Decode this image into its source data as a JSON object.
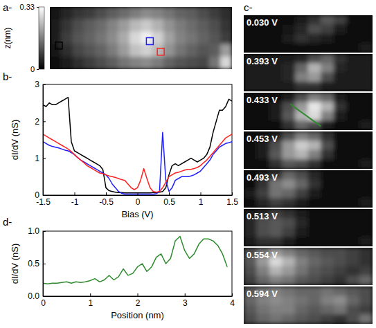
{
  "chart_data": [
    {
      "type": "heatmap",
      "panel": "a-",
      "colorbar_label": "z(nm)",
      "clim": [
        0,
        0.33
      ],
      "colorbar_ticks": [
        0,
        0.33
      ],
      "cells": [
        [
          0.03,
          0.05,
          0.07,
          0.08,
          0.1,
          0.12,
          0.14,
          0.16,
          0.18,
          0.17,
          0.15,
          0.13,
          0.12,
          0.1,
          0.08,
          0.06
        ],
        [
          0.04,
          0.07,
          0.1,
          0.12,
          0.14,
          0.17,
          0.2,
          0.24,
          0.26,
          0.23,
          0.19,
          0.16,
          0.14,
          0.12,
          0.1,
          0.07
        ],
        [
          0.04,
          0.08,
          0.11,
          0.13,
          0.15,
          0.18,
          0.22,
          0.28,
          0.31,
          0.27,
          0.21,
          0.17,
          0.15,
          0.13,
          0.11,
          0.08
        ],
        [
          0.03,
          0.06,
          0.09,
          0.11,
          0.13,
          0.16,
          0.2,
          0.25,
          0.27,
          0.24,
          0.19,
          0.15,
          0.13,
          0.11,
          0.12,
          0.2
        ],
        [
          0.02,
          0.04,
          0.06,
          0.08,
          0.1,
          0.12,
          0.15,
          0.17,
          0.18,
          0.16,
          0.13,
          0.11,
          0.1,
          0.09,
          0.15,
          0.28
        ]
      ]
    },
    {
      "type": "line",
      "panel": "b-",
      "xlabel": "Bias (V)",
      "ylabel": "dI/dV (nS)",
      "xlim": [
        -1.5,
        1.5
      ],
      "ylim": [
        0,
        3
      ],
      "xticks": [
        -1.5,
        -1,
        -0.5,
        0,
        0.5,
        1,
        1.5
      ],
      "yticks": [
        0,
        1,
        2,
        3
      ],
      "x": [
        -1.5,
        -1.45,
        -1.4,
        -1.35,
        -1.3,
        -1.25,
        -1.2,
        -1.15,
        -1.1,
        -1.05,
        -1,
        -0.95,
        -0.9,
        -0.85,
        -0.8,
        -0.75,
        -0.7,
        -0.65,
        -0.6,
        -0.55,
        -0.5,
        -0.45,
        -0.4,
        -0.35,
        -0.3,
        -0.25,
        -0.2,
        -0.15,
        -0.1,
        -0.05,
        0,
        0.05,
        0.1,
        0.15,
        0.2,
        0.25,
        0.3,
        0.35,
        0.4,
        0.45,
        0.5,
        0.55,
        0.6,
        0.65,
        0.7,
        0.75,
        0.8,
        0.85,
        0.9,
        0.95,
        1,
        1.05,
        1.1,
        1.15,
        1.2,
        1.25,
        1.3,
        1.35,
        1.4,
        1.45,
        1.5
      ],
      "series": [
        {
          "color": "#000000",
          "values": [
            2.45,
            2.4,
            2.5,
            2.45,
            2.45,
            2.5,
            2.55,
            2.6,
            2.65,
            1.45,
            1.2,
            1.15,
            1.1,
            1.05,
            1.0,
            0.95,
            0.9,
            0.85,
            0.8,
            0.7,
            0.2,
            0.12,
            0.1,
            0.08,
            0.07,
            0.07,
            0.06,
            0.06,
            0.06,
            0.06,
            0.06,
            0.06,
            0.06,
            0.06,
            0.06,
            0.07,
            0.07,
            0.08,
            0.1,
            0.2,
            0.55,
            0.8,
            0.85,
            0.8,
            0.85,
            0.9,
            0.95,
            1.0,
            0.95,
            0.9,
            0.95,
            1.0,
            1.1,
            1.3,
            1.7,
            2.0,
            2.3,
            2.3,
            2.4,
            2.6,
            2.55
          ]
        },
        {
          "color": "#1f1fff",
          "values": [
            1.45,
            1.4,
            1.35,
            1.32,
            1.3,
            1.28,
            1.25,
            1.22,
            1.2,
            1.15,
            1.1,
            1.02,
            0.95,
            0.9,
            0.85,
            0.8,
            0.75,
            0.7,
            0.65,
            0.6,
            0.55,
            0.45,
            0.3,
            0.2,
            0.1,
            0.05,
            0.03,
            0.03,
            0.03,
            0.03,
            0.03,
            0.03,
            0.03,
            0.03,
            0.03,
            0.03,
            0.04,
            0.1,
            1.7,
            0.4,
            0.1,
            0.2,
            0.4,
            0.45,
            0.5,
            0.5,
            0.5,
            0.52,
            0.55,
            0.6,
            0.65,
            0.75,
            0.85,
            0.95,
            1.1,
            1.2,
            1.3,
            1.35,
            1.4,
            1.42,
            1.45
          ]
        },
        {
          "color": "#ff2020",
          "values": [
            1.65,
            1.6,
            1.55,
            1.5,
            1.45,
            1.4,
            1.35,
            1.3,
            1.25,
            1.18,
            1.1,
            1.02,
            0.95,
            0.88,
            0.8,
            0.75,
            0.7,
            0.65,
            0.6,
            0.58,
            0.55,
            0.52,
            0.5,
            0.48,
            0.45,
            0.42,
            0.4,
            0.3,
            0.2,
            0.15,
            0.2,
            0.4,
            0.72,
            0.45,
            0.2,
            0.1,
            0.08,
            0.1,
            0.2,
            0.35,
            0.5,
            0.55,
            0.6,
            0.62,
            0.65,
            0.68,
            0.7,
            0.7,
            0.72,
            0.75,
            0.8,
            0.88,
            0.95,
            1.05,
            1.15,
            1.25,
            1.35,
            1.45,
            1.55,
            1.6,
            1.65
          ]
        }
      ]
    },
    {
      "type": "heatmap",
      "panel": "c-",
      "clim": [
        0,
        1
      ],
      "maps": [
        {
          "label": "0.030 V",
          "cells": [
            [
              0.05,
              0.05,
              0.05,
              0.05,
              0.1,
              0.2,
              0.35,
              0.25,
              0.05,
              0.05
            ],
            [
              0.05,
              0.05,
              0.05,
              0.08,
              0.15,
              0.3,
              0.25,
              0.1,
              0.05,
              0.05
            ],
            [
              0.05,
              0.05,
              0.05,
              0.1,
              0.2,
              0.15,
              0.1,
              0.05,
              0.05,
              0.05
            ],
            [
              0.05,
              0.05,
              0.05,
              0.05,
              0.05,
              0.05,
              0.05,
              0.05,
              0.05,
              0.1
            ]
          ]
        },
        {
          "label": "0.393 V",
          "cells": [
            [
              0.1,
              0.1,
              0.1,
              0.1,
              0.15,
              0.3,
              0.4,
              0.2,
              0.1,
              0.1
            ],
            [
              0.1,
              0.1,
              0.1,
              0.15,
              0.4,
              0.7,
              0.5,
              0.15,
              0.1,
              0.1
            ],
            [
              0.1,
              0.1,
              0.1,
              0.15,
              0.5,
              0.6,
              0.3,
              0.1,
              0.1,
              0.1
            ],
            [
              0.1,
              0.1,
              0.1,
              0.1,
              0.2,
              0.2,
              0.1,
              0.1,
              0.1,
              0.1
            ]
          ]
        },
        {
          "label": "0.433 V",
          "cells": [
            [
              0.05,
              0.05,
              0.05,
              0.1,
              0.3,
              0.5,
              0.4,
              0.1,
              0.05,
              0.05
            ],
            [
              0.05,
              0.05,
              0.1,
              0.3,
              0.6,
              0.9,
              0.7,
              0.2,
              0.05,
              0.05
            ],
            [
              0.05,
              0.05,
              0.1,
              0.35,
              0.7,
              0.85,
              0.5,
              0.1,
              0.05,
              0.05
            ],
            [
              0.05,
              0.05,
              0.05,
              0.2,
              0.4,
              0.3,
              0.1,
              0.05,
              0.05,
              0.1
            ]
          ]
        },
        {
          "label": "0.453 V",
          "cells": [
            [
              0.05,
              0.05,
              0.1,
              0.3,
              0.5,
              0.4,
              0.2,
              0.05,
              0.05,
              0.05
            ],
            [
              0.05,
              0.1,
              0.3,
              0.6,
              0.8,
              0.7,
              0.3,
              0.05,
              0.05,
              0.05
            ],
            [
              0.05,
              0.1,
              0.35,
              0.6,
              0.7,
              0.5,
              0.2,
              0.05,
              0.05,
              0.05
            ],
            [
              0.05,
              0.05,
              0.2,
              0.35,
              0.3,
              0.2,
              0.05,
              0.05,
              0.05,
              0.1
            ]
          ]
        },
        {
          "label": "0.493 V",
          "cells": [
            [
              0.05,
              0.1,
              0.2,
              0.4,
              0.3,
              0.15,
              0.05,
              0.05,
              0.05,
              0.05
            ],
            [
              0.05,
              0.2,
              0.45,
              0.55,
              0.4,
              0.2,
              0.05,
              0.05,
              0.05,
              0.05
            ],
            [
              0.1,
              0.25,
              0.45,
              0.4,
              0.25,
              0.1,
              0.05,
              0.05,
              0.05,
              0.05
            ],
            [
              0.05,
              0.15,
              0.25,
              0.2,
              0.1,
              0.05,
              0.05,
              0.05,
              0.05,
              0.1
            ]
          ]
        },
        {
          "label": "0.513 V",
          "cells": [
            [
              0.1,
              0.15,
              0.25,
              0.2,
              0.1,
              0.05,
              0.05,
              0.05,
              0.05,
              0.05
            ],
            [
              0.15,
              0.3,
              0.35,
              0.3,
              0.15,
              0.05,
              0.05,
              0.05,
              0.05,
              0.05
            ],
            [
              0.15,
              0.3,
              0.35,
              0.25,
              0.1,
              0.05,
              0.05,
              0.05,
              0.05,
              0.05
            ],
            [
              0.1,
              0.2,
              0.2,
              0.1,
              0.05,
              0.05,
              0.05,
              0.05,
              0.05,
              0.1
            ]
          ]
        },
        {
          "label": "0.554 V",
          "cells": [
            [
              0.3,
              0.45,
              0.6,
              0.5,
              0.4,
              0.35,
              0.3,
              0.3,
              0.25,
              0.2
            ],
            [
              0.35,
              0.6,
              0.85,
              0.7,
              0.5,
              0.4,
              0.35,
              0.3,
              0.25,
              0.2
            ],
            [
              0.3,
              0.5,
              0.7,
              0.6,
              0.45,
              0.35,
              0.3,
              0.25,
              0.2,
              0.25
            ],
            [
              0.25,
              0.4,
              0.5,
              0.45,
              0.35,
              0.3,
              0.25,
              0.2,
              0.3,
              0.4
            ]
          ]
        },
        {
          "label": "0.594 V",
          "cells": [
            [
              0.35,
              0.45,
              0.5,
              0.45,
              0.4,
              0.4,
              0.45,
              0.4,
              0.35,
              0.3
            ],
            [
              0.4,
              0.5,
              0.55,
              0.5,
              0.45,
              0.4,
              0.5,
              0.55,
              0.4,
              0.3
            ],
            [
              0.35,
              0.45,
              0.5,
              0.5,
              0.4,
              0.35,
              0.4,
              0.45,
              0.3,
              0.25
            ],
            [
              0.3,
              0.4,
              0.45,
              0.4,
              0.35,
              0.3,
              0.25,
              0.2,
              0.3,
              0.45
            ]
          ]
        }
      ]
    },
    {
      "type": "line",
      "panel": "d-",
      "xlabel": "Position (nm)",
      "ylabel": "dI/dV (nS)",
      "xlim": [
        0,
        4
      ],
      "ylim": [
        0,
        1
      ],
      "xticks": [
        0,
        1,
        2,
        3,
        4
      ],
      "yticks": [
        {
          "value": 0,
          "label": "0.0"
        },
        0.5,
        {
          "value": 1,
          "label": "1.0"
        }
      ],
      "x": [
        0,
        0.1,
        0.2,
        0.3,
        0.4,
        0.5,
        0.6,
        0.7,
        0.8,
        0.9,
        1,
        1.1,
        1.2,
        1.3,
        1.4,
        1.5,
        1.6,
        1.7,
        1.8,
        1.9,
        2,
        2.1,
        2.2,
        2.3,
        2.4,
        2.5,
        2.6,
        2.7,
        2.8,
        2.9,
        3,
        3.1,
        3.2,
        3.3,
        3.4,
        3.5,
        3.6,
        3.7,
        3.8,
        3.9
      ],
      "series": [
        {
          "color": "#2e8b2e",
          "values": [
            0.2,
            0.19,
            0.2,
            0.2,
            0.21,
            0.22,
            0.2,
            0.22,
            0.21,
            0.22,
            0.24,
            0.27,
            0.22,
            0.25,
            0.32,
            0.25,
            0.3,
            0.42,
            0.32,
            0.35,
            0.45,
            0.5,
            0.38,
            0.45,
            0.6,
            0.65,
            0.5,
            0.58,
            0.85,
            0.92,
            0.7,
            0.58,
            0.65,
            0.8,
            0.88,
            0.88,
            0.85,
            0.78,
            0.65,
            0.45
          ]
        }
      ]
    }
  ]
}
